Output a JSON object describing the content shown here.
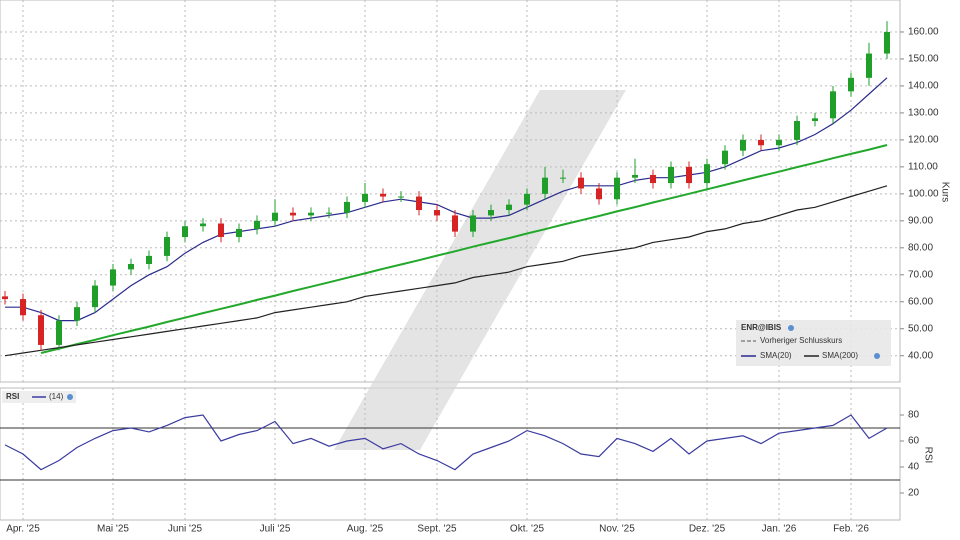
{
  "chart_data": [
    {
      "type": "candlestick",
      "legend_title": "ENR@IBIS",
      "legend": "lower right",
      "ylabel": "Kurs",
      "grid": true,
      "up_color": "#1f9e2a",
      "down_color": "#d62424",
      "categories": [
        null,
        "Apr. '25",
        null,
        null,
        null,
        null,
        "Mai '25",
        null,
        null,
        null,
        "Juni '25",
        null,
        null,
        null,
        null,
        "Juli '25",
        null,
        null,
        null,
        null,
        "Aug. '25",
        null,
        null,
        null,
        "Sept. '25",
        null,
        null,
        null,
        null,
        "Okt. '25",
        null,
        null,
        null,
        null,
        "Nov. '25",
        null,
        null,
        null,
        null,
        "Dez. '25",
        null,
        null,
        null,
        "Jan. '26",
        null,
        null,
        null,
        "Feb. '26",
        null,
        null
      ],
      "open": [
        62,
        61,
        55,
        44,
        53,
        58,
        66,
        72,
        74,
        77,
        84,
        88,
        89,
        84,
        87,
        90,
        93,
        92,
        93,
        93,
        97,
        100,
        99,
        99,
        94,
        92,
        86,
        92,
        94,
        96,
        100,
        106,
        106,
        102,
        98,
        106,
        107,
        104,
        110,
        104,
        111,
        116,
        120,
        118,
        120,
        127,
        128,
        138,
        143,
        152
      ],
      "high": [
        64,
        63,
        57,
        55,
        60,
        68,
        74,
        76,
        79,
        86,
        90,
        91,
        91,
        89,
        92,
        98,
        95,
        95,
        95,
        99,
        104,
        102,
        101,
        101,
        96,
        94,
        94,
        96,
        98,
        102,
        110,
        109,
        108,
        104,
        108,
        113,
        109,
        112,
        112,
        113,
        118,
        122,
        122,
        122,
        129,
        130,
        140,
        145,
        156,
        164
      ],
      "low": [
        59,
        53,
        42,
        42,
        51,
        56,
        64,
        70,
        72,
        75,
        82,
        86,
        82,
        82,
        85,
        88,
        90,
        90,
        91,
        91,
        95,
        97,
        97,
        92,
        90,
        84,
        84,
        90,
        92,
        94,
        98,
        104,
        100,
        96,
        96,
        104,
        102,
        102,
        102,
        102,
        109,
        114,
        116,
        116,
        118,
        125,
        126,
        136,
        140,
        150
      ],
      "close": [
        61,
        55,
        44,
        53,
        58,
        66,
        72,
        74,
        77,
        84,
        88,
        89,
        84,
        87,
        90,
        93,
        92,
        93,
        93,
        97,
        100,
        99,
        99,
        94,
        92,
        86,
        92,
        94,
        96,
        100,
        106,
        106,
        102,
        98,
        106,
        107,
        104,
        110,
        104,
        111,
        116,
        120,
        118,
        120,
        127,
        128,
        138,
        143,
        152,
        160
      ],
      "reference": {
        "name": "Vorheriger Schlusskurs",
        "color": "#555555"
      },
      "series": [
        {
          "name": "SMA(20)",
          "color": "#2b2b8f",
          "values": [
            58,
            58,
            56,
            53,
            53,
            56,
            61,
            66,
            70,
            73,
            78,
            82,
            85,
            86,
            87,
            88,
            90,
            91,
            92,
            93,
            95,
            97,
            98,
            97,
            96,
            93,
            91,
            91,
            92,
            95,
            98,
            101,
            103,
            103,
            103,
            105,
            106,
            106,
            107,
            108,
            110,
            113,
            116,
            117,
            119,
            122,
            126,
            131,
            137,
            143
          ]
        },
        {
          "name": "SMA(200)",
          "color": "#222222",
          "values": [
            40,
            41,
            42,
            43,
            44,
            45,
            46,
            47,
            48,
            49,
            50,
            51,
            52,
            53,
            54,
            56,
            57,
            58,
            59,
            60,
            62,
            63,
            64,
            65,
            66,
            67,
            69,
            70,
            71,
            73,
            74,
            75,
            77,
            78,
            79,
            80,
            82,
            83,
            84,
            86,
            87,
            89,
            90,
            92,
            94,
            95,
            97,
            99,
            101,
            103
          ]
        }
      ],
      "trendline": {
        "color": "#22a82a",
        "values": [
          null,
          null,
          41,
          42.6,
          44.3,
          45.9,
          47.6,
          49.2,
          50.8,
          52.5,
          54.1,
          55.8,
          57.4,
          59,
          60.7,
          62.3,
          64,
          65.6,
          67.2,
          68.9,
          70.5,
          72.2,
          73.8,
          75.4,
          77.1,
          78.7,
          80.4,
          82,
          83.6,
          85.3,
          86.9,
          88.6,
          90.2,
          91.8,
          93.5,
          95.1,
          96.8,
          98.4,
          100,
          101.7,
          103.3,
          105,
          106.6,
          108.2,
          109.9,
          111.5,
          113.2,
          114.8,
          116.4,
          118.1
        ]
      },
      "ylim": [
        31,
        170
      ],
      "yticks": [
        {
          "value": 40,
          "label": "40.00"
        },
        {
          "value": 50,
          "label": "50.00"
        },
        {
          "value": 60,
          "label": "60.00"
        },
        {
          "value": 70,
          "label": "70.00"
        },
        {
          "value": 80,
          "label": "80.00"
        },
        {
          "value": 90,
          "label": "90.00"
        },
        {
          "value": 100,
          "label": "100.00"
        },
        {
          "value": 110,
          "label": "110.00"
        },
        {
          "value": 120,
          "label": "120.00"
        },
        {
          "value": 130,
          "label": "130.00"
        },
        {
          "value": 140,
          "label": "140.00"
        },
        {
          "value": 150,
          "label": "150.00"
        },
        {
          "value": 160,
          "label": "160.00"
        }
      ]
    },
    {
      "type": "line",
      "title": "RSI",
      "ylabel": "RSI",
      "series": [
        {
          "name": "(14)",
          "color": "#3b3ba0",
          "values": [
            57,
            50,
            38,
            45,
            55,
            62,
            68,
            70,
            67,
            72,
            78,
            80,
            60,
            65,
            68,
            75,
            58,
            62,
            56,
            60,
            62,
            54,
            58,
            50,
            45,
            38,
            50,
            55,
            60,
            68,
            64,
            58,
            50,
            48,
            62,
            58,
            52,
            62,
            50,
            60,
            62,
            64,
            58,
            66,
            68,
            70,
            72,
            80,
            62,
            70
          ]
        }
      ],
      "levels": [
        30,
        70
      ],
      "ylim": [
        0,
        100
      ],
      "yticks": [
        20,
        40,
        60,
        80
      ]
    }
  ]
}
